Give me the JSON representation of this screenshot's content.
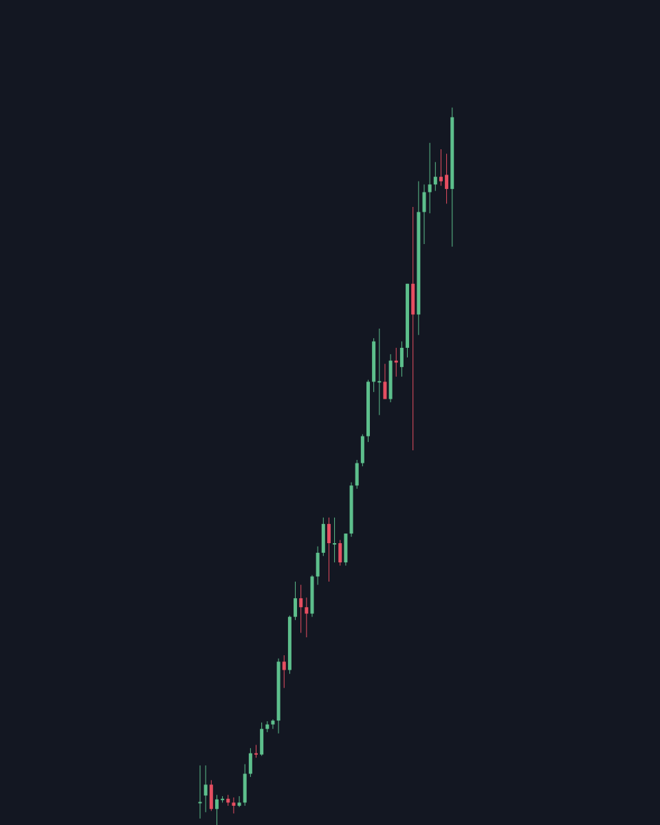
{
  "chart_data": {
    "type": "candlestick",
    "title": "",
    "xlabel": "",
    "ylabel": "",
    "grid": false,
    "legend": "none",
    "ylim": [
      0,
      1200
    ],
    "colors": {
      "background": "#131722",
      "up": "#5dbf8c",
      "down": "#e64e61"
    },
    "candles": [
      {
        "i": 0,
        "o": 36,
        "h": 93,
        "l": 10,
        "c": 36
      },
      {
        "i": 1,
        "o": 46,
        "h": 93,
        "l": 20,
        "c": 63
      },
      {
        "i": 2,
        "o": 63,
        "h": 70,
        "l": 22,
        "c": 25
      },
      {
        "i": 3,
        "o": 25,
        "h": 47,
        "l": 0,
        "c": 40
      },
      {
        "i": 4,
        "o": 40,
        "h": 45,
        "l": 35,
        "c": 41
      },
      {
        "i": 5,
        "o": 41,
        "h": 47,
        "l": 30,
        "c": 35
      },
      {
        "i": 6,
        "o": 35,
        "h": 43,
        "l": 18,
        "c": 30
      },
      {
        "i": 7,
        "o": 30,
        "h": 45,
        "l": 28,
        "c": 35
      },
      {
        "i": 8,
        "o": 35,
        "h": 95,
        "l": 30,
        "c": 80
      },
      {
        "i": 9,
        "o": 80,
        "h": 120,
        "l": 75,
        "c": 112
      },
      {
        "i": 10,
        "o": 112,
        "h": 125,
        "l": 105,
        "c": 110
      },
      {
        "i": 11,
        "o": 110,
        "h": 160,
        "l": 108,
        "c": 150
      },
      {
        "i": 12,
        "o": 150,
        "h": 162,
        "l": 145,
        "c": 157
      },
      {
        "i": 13,
        "o": 157,
        "h": 165,
        "l": 150,
        "c": 163
      },
      {
        "i": 14,
        "o": 163,
        "h": 260,
        "l": 143,
        "c": 255
      },
      {
        "i": 15,
        "o": 255,
        "h": 265,
        "l": 214,
        "c": 242
      },
      {
        "i": 16,
        "o": 242,
        "h": 327,
        "l": 236,
        "c": 325
      },
      {
        "i": 17,
        "o": 325,
        "h": 380,
        "l": 320,
        "c": 354
      },
      {
        "i": 18,
        "o": 354,
        "h": 375,
        "l": 300,
        "c": 340
      },
      {
        "i": 19,
        "o": 340,
        "h": 355,
        "l": 293,
        "c": 330
      },
      {
        "i": 20,
        "o": 330,
        "h": 390,
        "l": 325,
        "c": 388
      },
      {
        "i": 21,
        "o": 388,
        "h": 435,
        "l": 375,
        "c": 425
      },
      {
        "i": 22,
        "o": 425,
        "h": 480,
        "l": 420,
        "c": 470
      },
      {
        "i": 23,
        "o": 470,
        "h": 480,
        "l": 380,
        "c": 440
      },
      {
        "i": 24,
        "o": 440,
        "h": 480,
        "l": 410,
        "c": 440
      },
      {
        "i": 25,
        "o": 440,
        "h": 445,
        "l": 405,
        "c": 410
      },
      {
        "i": 26,
        "o": 410,
        "h": 455,
        "l": 405,
        "c": 455
      },
      {
        "i": 27,
        "o": 455,
        "h": 535,
        "l": 450,
        "c": 530
      },
      {
        "i": 28,
        "o": 530,
        "h": 570,
        "l": 525,
        "c": 565
      },
      {
        "i": 29,
        "o": 565,
        "h": 610,
        "l": 560,
        "c": 607
      },
      {
        "i": 30,
        "o": 607,
        "h": 695,
        "l": 598,
        "c": 692
      },
      {
        "i": 31,
        "o": 692,
        "h": 760,
        "l": 676,
        "c": 755
      },
      {
        "i": 32,
        "o": 693,
        "h": 775,
        "l": 640,
        "c": 693
      },
      {
        "i": 33,
        "o": 692,
        "h": 720,
        "l": 665,
        "c": 665
      },
      {
        "i": 34,
        "o": 665,
        "h": 735,
        "l": 660,
        "c": 725
      },
      {
        "i": 35,
        "o": 725,
        "h": 745,
        "l": 700,
        "c": 722
      },
      {
        "i": 36,
        "o": 715,
        "h": 755,
        "l": 700,
        "c": 745
      },
      {
        "i": 37,
        "o": 745,
        "h": 845,
        "l": 730,
        "c": 845
      },
      {
        "i": 38,
        "o": 845,
        "h": 965,
        "l": 585,
        "c": 797
      },
      {
        "i": 39,
        "o": 797,
        "h": 1005,
        "l": 765,
        "c": 957
      },
      {
        "i": 40,
        "o": 957,
        "h": 1000,
        "l": 907,
        "c": 988
      },
      {
        "i": 41,
        "o": 988,
        "h": 1065,
        "l": 955,
        "c": 1000
      },
      {
        "i": 42,
        "o": 1000,
        "h": 1035,
        "l": 990,
        "c": 1012
      },
      {
        "i": 43,
        "o": 1012,
        "h": 1055,
        "l": 998,
        "c": 1005
      },
      {
        "i": 44,
        "o": 1015,
        "h": 1048,
        "l": 970,
        "c": 993
      },
      {
        "i": 45,
        "o": 993,
        "h": 1120,
        "l": 903,
        "c": 1105
      }
    ]
  }
}
